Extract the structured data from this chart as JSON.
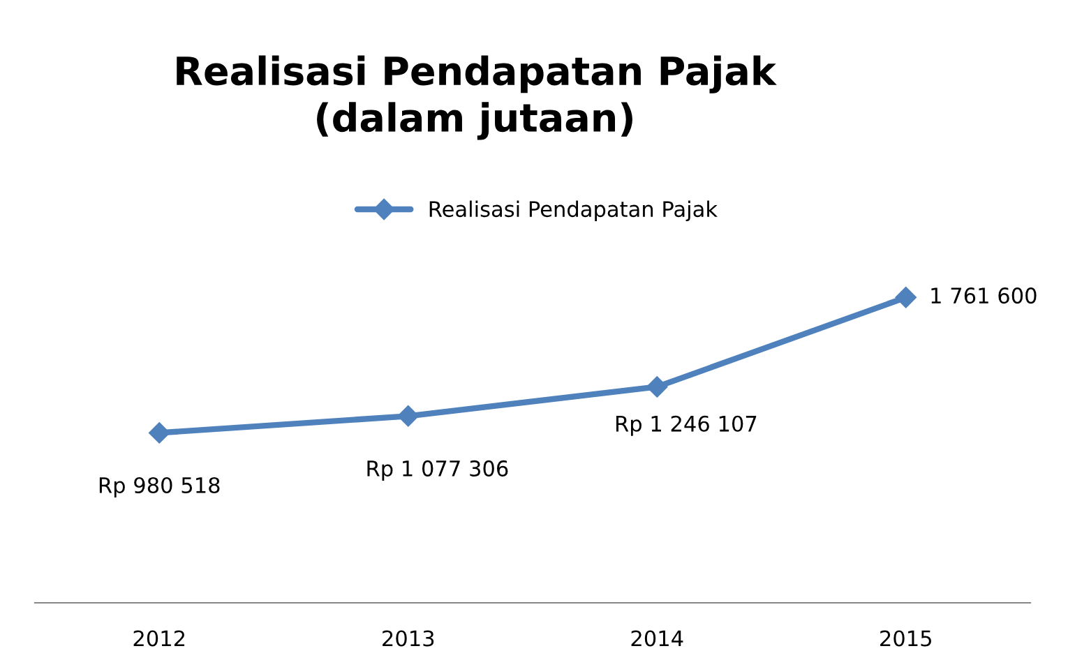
{
  "chart_data": {
    "type": "line",
    "title": "Realisasi Pendapatan Pajak\n(dalam jutaan)",
    "categories": [
      "2012",
      "2013",
      "2014",
      "2015"
    ],
    "series": [
      {
        "name": "Realisasi Pendapatan Pajak",
        "color": "#4f81bd",
        "values": [
          980518,
          1077306,
          1246107,
          1761600
        ],
        "value_labels": [
          "Rp 980 518",
          "Rp 1 077 306",
          "Rp 1 246 107",
          "1 761 600"
        ]
      }
    ],
    "marker": "diamond",
    "line_style": "solid",
    "legend": "top",
    "grid": false
  }
}
